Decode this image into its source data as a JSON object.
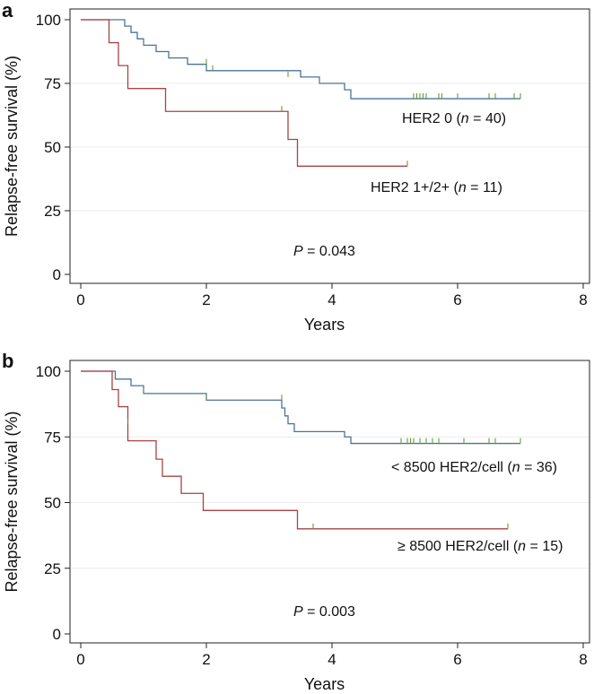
{
  "chart_data": [
    {
      "type": "line",
      "panel_label": "a",
      "xlabel": "Years",
      "ylabel": "Relapse-free survival (%)",
      "xlim": [
        0,
        8
      ],
      "ylim": [
        0,
        100
      ],
      "xticks": [
        "0",
        "2",
        "4",
        "6",
        "8"
      ],
      "yticks": [
        "0",
        "25",
        "50",
        "75",
        "100"
      ],
      "pvalue": {
        "prefix": "P",
        "text": " = 0.043"
      },
      "series": [
        {
          "name": "HER2 0",
          "label_pre": "HER2 0 (",
          "label_italic": "n",
          "label_post": " = 40)",
          "color": "#4a7398",
          "step_x": [
            0,
            0.7,
            0.8,
            0.9,
            1.0,
            1.2,
            1.4,
            1.7,
            2.0,
            2.1,
            3.5,
            3.8,
            4.2,
            4.3,
            7.0
          ],
          "step_y": [
            100,
            97.5,
            95,
            92.5,
            90,
            87.5,
            85,
            82.5,
            80,
            80,
            77.5,
            75,
            72.5,
            69,
            69
          ],
          "censor_x": [
            1.0,
            2.0,
            2.1,
            3.3,
            3.8,
            5.3,
            5.35,
            5.4,
            5.45,
            5.5,
            5.7,
            5.75,
            6.0,
            6.5,
            6.6,
            6.9,
            7.0
          ],
          "censor_y": [
            90,
            82.5,
            80,
            77.5,
            75,
            69,
            69,
            69,
            69,
            69,
            69,
            69,
            69,
            69,
            69,
            69,
            69
          ]
        },
        {
          "name": "HER2 1+/2+",
          "label_pre": "HER2 1+/2+ (",
          "label_italic": "n",
          "label_post": " = 11)",
          "color": "#a64444",
          "step_x": [
            0,
            0.45,
            0.6,
            0.75,
            1.35,
            3.3,
            3.45,
            5.2
          ],
          "step_y": [
            100,
            91,
            82,
            73,
            64,
            53,
            42.5,
            42.5
          ],
          "censor_x": [
            3.2,
            5.2
          ],
          "censor_y": [
            64,
            42.5
          ]
        }
      ]
    },
    {
      "type": "line",
      "panel_label": "b",
      "xlabel": "Years",
      "ylabel": "Relapse-free survival (%)",
      "xlim": [
        0,
        8
      ],
      "ylim": [
        0,
        100
      ],
      "xticks": [
        "0",
        "2",
        "4",
        "6",
        "8"
      ],
      "yticks": [
        "0",
        "25",
        "50",
        "75",
        "100"
      ],
      "pvalue": {
        "prefix": "P",
        "text": " = 0.003"
      },
      "series": [
        {
          "name": "< 8500 HER2/cell",
          "label_pre": "< 8500 HER2/cell (",
          "label_italic": "n",
          "label_post": " = 36)",
          "color": "#4a7398",
          "step_x": [
            0,
            0.55,
            0.8,
            1.0,
            1.3,
            2.0,
            2.2,
            3.2,
            3.25,
            3.3,
            3.4,
            3.6,
            4.2,
            4.3,
            7.0
          ],
          "step_y": [
            100,
            97,
            94.5,
            91.5,
            91.5,
            89,
            89,
            86,
            83,
            80,
            77,
            77,
            75,
            72.5,
            72.5
          ],
          "censor_x": [
            1.0,
            2.0,
            3.2,
            5.1,
            5.2,
            5.25,
            5.3,
            5.4,
            5.5,
            5.6,
            5.7,
            6.1,
            6.5,
            6.6,
            7.0
          ],
          "censor_y": [
            91.5,
            89,
            89,
            72.5,
            72.5,
            72.5,
            72.5,
            72.5,
            72.5,
            72.5,
            72.5,
            72.5,
            72.5,
            72.5,
            72.5
          ]
        },
        {
          "name": "≥ 8500 HER2/cell",
          "label_pre": "≥ 8500 HER2/cell (",
          "label_italic": "n",
          "label_post": " = 15)",
          "color": "#a64444",
          "step_x": [
            0,
            0.5,
            0.6,
            0.75,
            1.2,
            1.3,
            1.6,
            1.95,
            3.45,
            6.8
          ],
          "step_y": [
            100,
            93,
            86.5,
            73.5,
            66.5,
            60,
            53.5,
            47,
            40,
            40
          ],
          "censor_x": [
            0.75,
            3.7,
            6.8
          ],
          "censor_y": [
            80,
            40,
            40
          ]
        }
      ]
    }
  ]
}
